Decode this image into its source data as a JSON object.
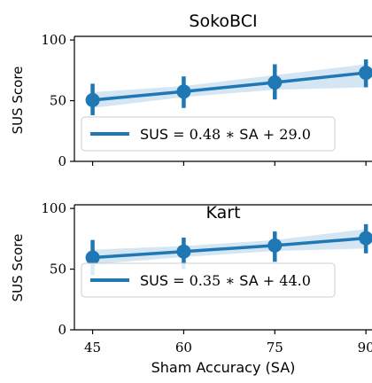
{
  "chart_data": [
    {
      "type": "line",
      "title": "SokoBCI",
      "ylabel": "SUS Score",
      "xlabel": "",
      "x": [
        45,
        60,
        75,
        90
      ],
      "x_ticks": [
        "45",
        "60",
        "75",
        "90"
      ],
      "y_ticks": [
        "0",
        "50",
        "100"
      ],
      "xlim": [
        42,
        91
      ],
      "ylim": [
        0,
        103
      ],
      "grid": false,
      "legend_position": "lower-left",
      "series": [
        {
          "name": "SUS = 0.48 * SA + 29.0",
          "legend_label": {
            "sym": "SUS",
            "eq": " = 0.48 ",
            "op": "∗",
            "sa": " SA",
            "tail": " + 29.0"
          },
          "values": [
            50.5,
            57.5,
            65,
            73
          ],
          "error_low": [
            38,
            44,
            51,
            61
          ],
          "error_high": [
            64,
            70,
            80,
            84
          ],
          "ci_low_line": [
            44,
            53,
            59,
            61
          ],
          "ci_high_line": [
            57,
            62,
            71,
            80
          ]
        }
      ],
      "colors": {
        "line": "#1f77b4",
        "band": "#c6dcef"
      }
    },
    {
      "type": "line",
      "title": "Kart",
      "ylabel": "SUS Score",
      "xlabel": "Sham Accuracy (SA)",
      "x": [
        45,
        60,
        75,
        90
      ],
      "x_ticks": [
        "45",
        "60",
        "75",
        "90"
      ],
      "y_ticks": [
        "0",
        "50",
        "100"
      ],
      "xlim": [
        42,
        91
      ],
      "ylim": [
        0,
        103
      ],
      "grid": false,
      "legend_position": "lower-left",
      "series": [
        {
          "name": "SUS = 0.35 * SA + 44.0",
          "legend_label": {
            "sym": "SUS",
            "eq": " = 0.35 ",
            "op": "∗",
            "sa": " SA",
            "tail": " + 44.0"
          },
          "values": [
            59.5,
            64.5,
            69.5,
            75.5
          ],
          "error_low": [
            45,
            50,
            56,
            63
          ],
          "error_high": [
            74,
            76,
            81,
            87
          ],
          "ci_low_line": [
            54,
            60,
            65,
            67
          ],
          "ci_high_line": [
            66,
            69,
            74,
            83
          ]
        }
      ],
      "colors": {
        "line": "#1f77b4",
        "band": "#c6dcef"
      }
    }
  ]
}
